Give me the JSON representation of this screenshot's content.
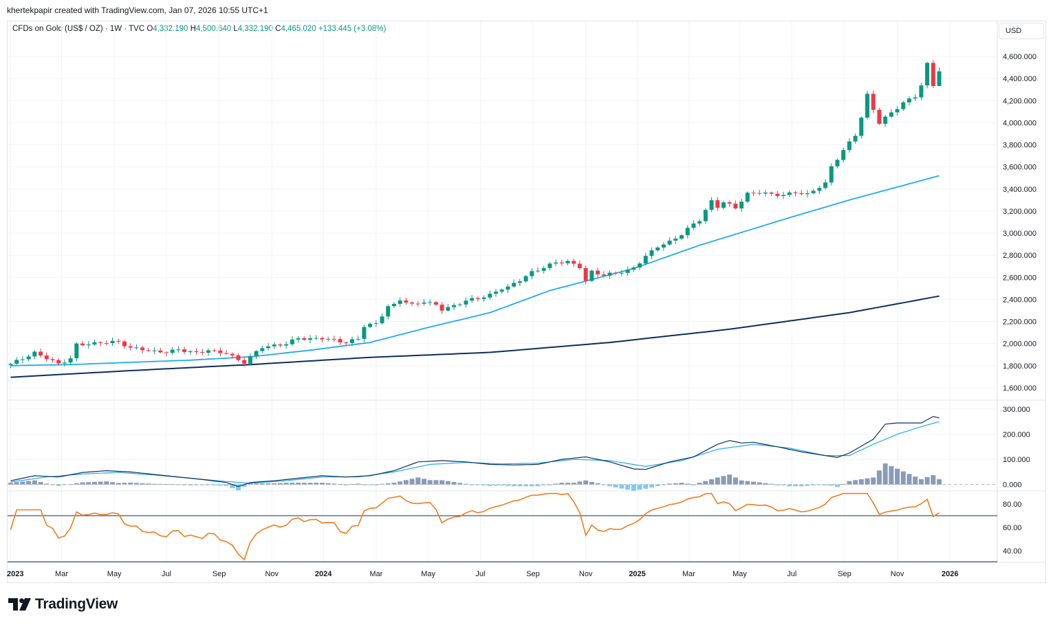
{
  "header": {
    "attribution": "khertekpapir created with TradingView.com, Jan 07, 2026 10:55 UTC+1"
  },
  "legend": {
    "symbol": "CFDs on Gold (US$ / OZ) · 1W · TVC",
    "o_label": "O",
    "o": "4,332.190",
    "h_label": "H",
    "h": "4,500.640",
    "l_label": "L",
    "l": "4,332.190",
    "c_label": "C",
    "c": "4,465.020",
    "change": "+133.445 (+3.08%)"
  },
  "currency": "USD",
  "brand": {
    "name": "TradingView"
  },
  "colors": {
    "up": "#089981",
    "down": "#f23645",
    "ma_fast": "#1eaaf0",
    "ma_slow": "#0d2e5a",
    "macd": "#0d2e5a",
    "signal": "#1eaaf0",
    "hist_pos": "#8a9bb8",
    "hist_neg": "#7fcbf0",
    "rsi": "#f07c1e"
  },
  "chart_data": {
    "type": "candlestick",
    "interval": "1W",
    "x_ticks": [
      {
        "label": "2023",
        "t": 0,
        "bold": true
      },
      {
        "label": "Mar",
        "t": 8.5,
        "bold": false
      },
      {
        "label": "May",
        "t": 17.3,
        "bold": false
      },
      {
        "label": "Jul",
        "t": 26,
        "bold": false
      },
      {
        "label": "Sep",
        "t": 34.8,
        "bold": false
      },
      {
        "label": "Nov",
        "t": 43.6,
        "bold": false
      },
      {
        "label": "2024",
        "t": 52.2,
        "bold": true
      },
      {
        "label": "Mar",
        "t": 61,
        "bold": false
      },
      {
        "label": "May",
        "t": 69.7,
        "bold": false
      },
      {
        "label": "Jul",
        "t": 78.4,
        "bold": false
      },
      {
        "label": "Sep",
        "t": 87.2,
        "bold": false
      },
      {
        "label": "Nov",
        "t": 96,
        "bold": false
      },
      {
        "label": "2025",
        "t": 104.6,
        "bold": true
      },
      {
        "label": "Mar",
        "t": 113.2,
        "bold": false
      },
      {
        "label": "May",
        "t": 121.7,
        "bold": false
      },
      {
        "label": "Jul",
        "t": 130.4,
        "bold": false
      },
      {
        "label": "Sep",
        "t": 139.2,
        "bold": false
      },
      {
        "label": "Nov",
        "t": 148,
        "bold": false
      },
      {
        "label": "2026",
        "t": 156.8,
        "bold": true
      }
    ],
    "price_axis": {
      "ticks": [
        "4,600.000",
        "4,400.000",
        "4,200.000",
        "4,000.000",
        "3,800.000",
        "3,600.000",
        "3,400.000",
        "3,200.000",
        "3,000.000",
        "2,800.000",
        "2,600.000",
        "2,400.000",
        "2,200.000",
        "2,000.000",
        "1,800.000",
        "1,600.000"
      ],
      "range": [
        1500,
        4750
      ]
    },
    "close_anchors": [
      [
        0,
        1817
      ],
      [
        2,
        1865
      ],
      [
        4,
        1915
      ],
      [
        6,
        1870
      ],
      [
        8,
        1815
      ],
      [
        10,
        1865
      ],
      [
        11,
        1990
      ],
      [
        14,
        2000
      ],
      [
        16,
        2015
      ],
      [
        18,
        2015
      ],
      [
        20,
        1960
      ],
      [
        22,
        1950
      ],
      [
        24,
        1925
      ],
      [
        26,
        1925
      ],
      [
        28,
        1945
      ],
      [
        30,
        1925
      ],
      [
        31,
        1915
      ],
      [
        33,
        1940
      ],
      [
        34,
        1925
      ],
      [
        36,
        1915
      ],
      [
        38,
        1850
      ],
      [
        39,
        1830
      ],
      [
        40,
        1880
      ],
      [
        42,
        1970
      ],
      [
        44,
        1980
      ],
      [
        46,
        2000
      ],
      [
        48,
        2050
      ],
      [
        50,
        2040
      ],
      [
        52,
        2050
      ],
      [
        54,
        2030
      ],
      [
        56,
        2010
      ],
      [
        58,
        2045
      ],
      [
        59,
        2160
      ],
      [
        61,
        2180
      ],
      [
        63,
        2335
      ],
      [
        64,
        2350
      ],
      [
        65,
        2400
      ],
      [
        67,
        2350
      ],
      [
        69,
        2380
      ],
      [
        71,
        2350
      ],
      [
        72,
        2310
      ],
      [
        74,
        2340
      ],
      [
        76,
        2390
      ],
      [
        78,
        2410
      ],
      [
        80,
        2440
      ],
      [
        82,
        2500
      ],
      [
        83,
        2510
      ],
      [
        85,
        2575
      ],
      [
        87,
        2645
      ],
      [
        89,
        2690
      ],
      [
        91,
        2735
      ],
      [
        93,
        2740
      ],
      [
        95,
        2695
      ],
      [
        96,
        2565
      ],
      [
        97,
        2650
      ],
      [
        99,
        2620
      ],
      [
        101,
        2640
      ],
      [
        103,
        2660
      ],
      [
        104,
        2685
      ],
      [
        106,
        2790
      ],
      [
        108,
        2880
      ],
      [
        110,
        2920
      ],
      [
        112,
        2990
      ],
      [
        114,
        3085
      ],
      [
        115,
        3120
      ],
      [
        117,
        3290
      ],
      [
        118,
        3240
      ],
      [
        119,
        3280
      ],
      [
        121,
        3230
      ],
      [
        123,
        3355
      ],
      [
        125,
        3370
      ],
      [
        127,
        3350
      ],
      [
        129,
        3345
      ],
      [
        131,
        3370
      ],
      [
        133,
        3350
      ],
      [
        135,
        3420
      ],
      [
        136,
        3450
      ],
      [
        137,
        3600
      ],
      [
        139,
        3750
      ],
      [
        141,
        3890
      ],
      [
        142,
        4050
      ],
      [
        143,
        4250
      ],
      [
        144,
        4120
      ],
      [
        145,
        4000
      ],
      [
        147,
        4090
      ],
      [
        149,
        4180
      ],
      [
        151,
        4240
      ],
      [
        152,
        4340
      ],
      [
        153,
        4530
      ],
      [
        154,
        4332
      ],
      [
        155,
        4465
      ]
    ],
    "series": [
      {
        "name": "",
        "type": "line",
        "pane": "price",
        "anchors": [
          [
            0,
            1800
          ],
          [
            10,
            1810
          ],
          [
            30,
            1850
          ],
          [
            40,
            1880
          ],
          [
            50,
            1940
          ],
          [
            60,
            2010
          ],
          [
            70,
            2150
          ],
          [
            80,
            2280
          ],
          [
            90,
            2480
          ],
          [
            104,
            2680
          ],
          [
            115,
            2890
          ],
          [
            130,
            3140
          ],
          [
            140,
            3300
          ],
          [
            155,
            3520
          ]
        ]
      },
      {
        "name": "",
        "type": "line",
        "pane": "price",
        "anchors": [
          [
            0,
            1695
          ],
          [
            20,
            1755
          ],
          [
            40,
            1810
          ],
          [
            60,
            1875
          ],
          [
            80,
            1920
          ],
          [
            100,
            2010
          ],
          [
            120,
            2130
          ],
          [
            140,
            2280
          ],
          [
            155,
            2430
          ]
        ]
      }
    ],
    "macd": {
      "axis_ticks": [
        "300.000",
        "200.000",
        "100.000",
        "0.000"
      ],
      "range": [
        -20,
        330
      ],
      "macd_anchors": [
        [
          0,
          15
        ],
        [
          4,
          35
        ],
        [
          8,
          30
        ],
        [
          12,
          48
        ],
        [
          16,
          55
        ],
        [
          20,
          50
        ],
        [
          24,
          40
        ],
        [
          28,
          30
        ],
        [
          32,
          20
        ],
        [
          36,
          8
        ],
        [
          38,
          -8
        ],
        [
          40,
          8
        ],
        [
          44,
          15
        ],
        [
          48,
          25
        ],
        [
          52,
          35
        ],
        [
          56,
          30
        ],
        [
          60,
          35
        ],
        [
          64,
          55
        ],
        [
          68,
          90
        ],
        [
          72,
          95
        ],
        [
          76,
          90
        ],
        [
          80,
          80
        ],
        [
          84,
          78
        ],
        [
          88,
          80
        ],
        [
          92,
          100
        ],
        [
          96,
          110
        ],
        [
          100,
          90
        ],
        [
          104,
          62
        ],
        [
          106,
          60
        ],
        [
          110,
          90
        ],
        [
          114,
          110
        ],
        [
          118,
          160
        ],
        [
          120,
          175
        ],
        [
          122,
          165
        ],
        [
          124,
          168
        ],
        [
          128,
          150
        ],
        [
          132,
          130
        ],
        [
          136,
          115
        ],
        [
          138,
          108
        ],
        [
          140,
          125
        ],
        [
          144,
          180
        ],
        [
          146,
          240
        ],
        [
          148,
          245
        ],
        [
          152,
          245
        ],
        [
          154,
          270
        ],
        [
          155,
          265
        ]
      ],
      "signal_anchors": [
        [
          0,
          10
        ],
        [
          6,
          30
        ],
        [
          12,
          42
        ],
        [
          18,
          48
        ],
        [
          24,
          38
        ],
        [
          30,
          25
        ],
        [
          36,
          12
        ],
        [
          40,
          5
        ],
        [
          46,
          15
        ],
        [
          52,
          30
        ],
        [
          58,
          30
        ],
        [
          64,
          50
        ],
        [
          70,
          80
        ],
        [
          76,
          88
        ],
        [
          82,
          82
        ],
        [
          88,
          85
        ],
        [
          94,
          100
        ],
        [
          100,
          95
        ],
        [
          106,
          72
        ],
        [
          112,
          95
        ],
        [
          118,
          140
        ],
        [
          124,
          160
        ],
        [
          130,
          145
        ],
        [
          136,
          115
        ],
        [
          140,
          115
        ],
        [
          144,
          160
        ],
        [
          148,
          200
        ],
        [
          152,
          230
        ],
        [
          155,
          250
        ]
      ]
    },
    "rsi": {
      "axis_ticks": [
        "80.00",
        "60.00",
        "40.00"
      ],
      "range": [
        30,
        90
      ],
      "level": 70,
      "lower_level": 30
    }
  }
}
